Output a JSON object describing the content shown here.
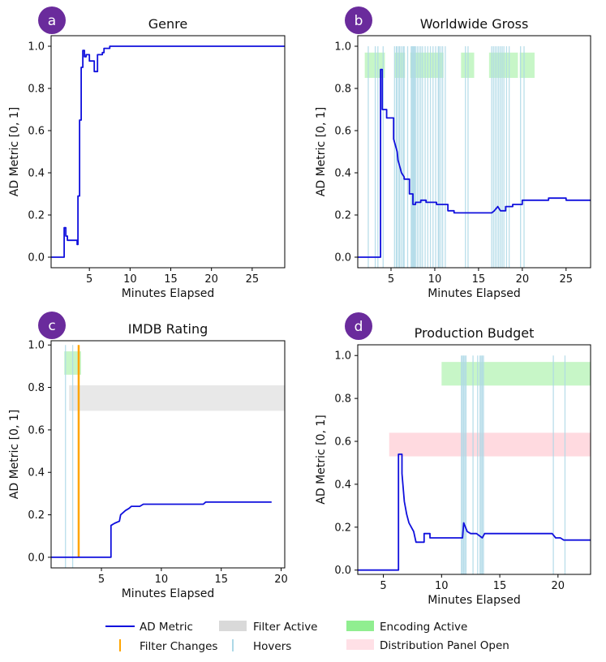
{
  "legend": {
    "ad_metric": "AD Metric",
    "filter_active": "Filter Active",
    "encoding_active": "Encoding Active",
    "filter_changes": "Filter Changes",
    "hovers": "Hovers",
    "distribution_panel_open": "Distribution Panel Open"
  },
  "colors": {
    "ad_metric": "#1010dd",
    "filter_active": "#bdbdbd",
    "encoding_active": "#90ee90",
    "filter_changes": "#ffa500",
    "hovers": "#add8e6",
    "distribution_panel_open": "#ffb6c1",
    "badge": "#6a2b9c"
  },
  "chart_data": [
    {
      "badge": "a",
      "type": "line",
      "title": "Genre",
      "xlabel": "Minutes Elapsed",
      "ylabel": "AD Metric [0, 1]",
      "xlim": [
        0.3,
        29
      ],
      "ylim": [
        -0.05,
        1.05
      ],
      "xticks": [
        5,
        10,
        15,
        20,
        25
      ],
      "yticks": [
        0.0,
        0.2,
        0.4,
        0.6,
        0.8,
        1.0
      ],
      "series": [
        {
          "name": "AD Metric",
          "x": [
            0.3,
            1.9,
            1.9,
            2.1,
            2.1,
            2.3,
            2.3,
            3.5,
            3.5,
            3.6,
            3.6,
            3.8,
            3.8,
            4.0,
            4.0,
            4.2,
            4.2,
            4.4,
            4.4,
            4.6,
            4.6,
            5.0,
            5.0,
            5.6,
            5.6,
            6.0,
            6.0,
            6.6,
            6.6,
            6.8,
            6.8,
            7.5,
            7.5,
            29
          ],
          "y": [
            0.0,
            0.0,
            0.14,
            0.14,
            0.1,
            0.1,
            0.08,
            0.08,
            0.06,
            0.06,
            0.29,
            0.29,
            0.65,
            0.65,
            0.9,
            0.9,
            0.98,
            0.98,
            0.95,
            0.95,
            0.96,
            0.96,
            0.93,
            0.93,
            0.88,
            0.88,
            0.96,
            0.96,
            0.97,
            0.97,
            0.99,
            0.99,
            1.0,
            1.0
          ]
        }
      ],
      "hovers": [],
      "filter_changes": [],
      "bands": []
    },
    {
      "badge": "b",
      "type": "line",
      "title": "Worldwide Gross",
      "xlabel": "Minutes Elapsed",
      "ylabel": "AD Metric [0, 1]",
      "xlim": [
        1.2,
        27.8
      ],
      "ylim": [
        -0.05,
        1.05
      ],
      "xticks": [
        5,
        10,
        15,
        20,
        25
      ],
      "yticks": [
        0.0,
        0.2,
        0.4,
        0.6,
        0.8,
        1.0
      ],
      "series": [
        {
          "name": "AD Metric",
          "x": [
            1.2,
            3.8,
            3.8,
            4.0,
            4.0,
            4.5,
            4.5,
            5.3,
            5.3,
            5.7,
            5.8,
            6.0,
            6.2,
            6.5,
            6.5,
            7.1,
            7.1,
            7.5,
            7.5,
            7.8,
            7.8,
            8.4,
            8.4,
            9.0,
            9.0,
            10.2,
            10.2,
            11.5,
            11.5,
            12.2,
            12.2,
            16.5,
            16.8,
            17.2,
            17.5,
            18.1,
            18.1,
            18.9,
            18.9,
            20.0,
            20.0,
            23.0,
            23.0,
            25.0,
            25.0,
            27.8
          ],
          "y": [
            0.0,
            0.0,
            0.89,
            0.89,
            0.7,
            0.7,
            0.66,
            0.66,
            0.56,
            0.5,
            0.46,
            0.43,
            0.4,
            0.38,
            0.37,
            0.37,
            0.3,
            0.3,
            0.25,
            0.25,
            0.26,
            0.26,
            0.27,
            0.27,
            0.26,
            0.26,
            0.25,
            0.25,
            0.22,
            0.22,
            0.21,
            0.21,
            0.22,
            0.24,
            0.22,
            0.22,
            0.24,
            0.24,
            0.25,
            0.25,
            0.27,
            0.27,
            0.28,
            0.28,
            0.27,
            0.27
          ]
        },
        {
          "name": "Hovers",
          "x": [
            2.4,
            3.2,
            3.5,
            4.1,
            5.4,
            5.6,
            5.7,
            5.9,
            6.0,
            6.2,
            6.4,
            6.5,
            6.9,
            7.3,
            7.4,
            7.5,
            7.6,
            7.7,
            7.8,
            8.0,
            8.2,
            8.4,
            8.6,
            8.9,
            9.2,
            9.5,
            9.8,
            10.1,
            10.4,
            10.5,
            10.7,
            10.9,
            11.2,
            13.5,
            13.8,
            16.5,
            16.7,
            16.9,
            17.1,
            17.3,
            17.5,
            17.7,
            17.9,
            18.2,
            18.5,
            19.8,
            20.2
          ]
        }
      ],
      "hovers": [
        2.4,
        3.2,
        3.5,
        4.1,
        5.4,
        5.6,
        5.7,
        5.9,
        6.0,
        6.2,
        6.4,
        6.5,
        6.9,
        7.3,
        7.4,
        7.5,
        7.6,
        7.7,
        7.8,
        8.0,
        8.2,
        8.4,
        8.6,
        8.9,
        9.2,
        9.5,
        9.8,
        10.1,
        10.4,
        10.5,
        10.7,
        10.9,
        11.2,
        13.5,
        13.8,
        16.5,
        16.7,
        16.9,
        17.1,
        17.3,
        17.5,
        17.7,
        17.9,
        18.2,
        18.5,
        19.8,
        20.2
      ],
      "filter_changes": [],
      "bands": [
        {
          "kind": "encoding_active",
          "x0": 2.0,
          "x1": 4.3,
          "y0": 0.85,
          "y1": 0.97
        },
        {
          "kind": "encoding_active",
          "x0": 5.4,
          "x1": 6.6,
          "y0": 0.85,
          "y1": 0.97
        },
        {
          "kind": "encoding_active",
          "x0": 7.2,
          "x1": 11.0,
          "y0": 0.85,
          "y1": 0.97
        },
        {
          "kind": "encoding_active",
          "x0": 13.0,
          "x1": 14.5,
          "y0": 0.85,
          "y1": 0.97
        },
        {
          "kind": "encoding_active",
          "x0": 16.2,
          "x1": 19.5,
          "y0": 0.85,
          "y1": 0.97
        },
        {
          "kind": "encoding_active",
          "x0": 19.7,
          "x1": 21.4,
          "y0": 0.85,
          "y1": 0.97
        }
      ]
    },
    {
      "badge": "c",
      "type": "line",
      "title": "IMDB Rating",
      "xlabel": "Minutes Elapsed",
      "ylabel": "AD Metric [0, 1]",
      "xlim": [
        0.8,
        20.3
      ],
      "ylim": [
        -0.05,
        1.02
      ],
      "xticks": [
        5,
        10,
        15,
        20
      ],
      "yticks": [
        0.0,
        0.2,
        0.4,
        0.6,
        0.8,
        1.0
      ],
      "series": [
        {
          "name": "AD Metric",
          "x": [
            0.8,
            5.8,
            5.8,
            6.1,
            6.5,
            6.6,
            7.0,
            7.3,
            7.5,
            8.2,
            8.5,
            9.0,
            9.8,
            13.5,
            13.7,
            17.0,
            17.3,
            19.2
          ],
          "y": [
            0.0,
            0.0,
            0.15,
            0.16,
            0.17,
            0.2,
            0.22,
            0.23,
            0.24,
            0.24,
            0.25,
            0.25,
            0.25,
            0.25,
            0.26,
            0.26,
            0.26,
            0.26
          ]
        }
      ],
      "hovers": [
        2.0,
        2.6
      ],
      "filter_changes": [
        3.1
      ],
      "bands": [
        {
          "kind": "encoding_active",
          "x0": 1.9,
          "x1": 3.3,
          "y0": 0.86,
          "y1": 0.97
        },
        {
          "kind": "filter_active",
          "x0": 2.3,
          "x1": 20.3,
          "y0": 0.69,
          "y1": 0.81
        }
      ]
    },
    {
      "badge": "d",
      "type": "line",
      "title": "Production Budget",
      "xlabel": "Minutes Elapsed",
      "ylabel": "AD Metric [0, 1]",
      "xlim": [
        2.8,
        22.8
      ],
      "ylim": [
        -0.02,
        1.05
      ],
      "xticks": [
        5,
        10,
        15,
        20
      ],
      "yticks": [
        0.0,
        0.2,
        0.4,
        0.6,
        0.8,
        1.0
      ],
      "series": [
        {
          "name": "AD Metric",
          "x": [
            2.8,
            6.3,
            6.3,
            6.6,
            6.6,
            6.8,
            7.0,
            7.2,
            7.4,
            7.6,
            7.8,
            8.5,
            8.5,
            9.0,
            9.0,
            11.8,
            11.9,
            12.2,
            12.5,
            13.0,
            13.5,
            13.7,
            14.0,
            19.5,
            19.8,
            20.2,
            20.5,
            22.8
          ],
          "y": [
            0.0,
            0.0,
            0.54,
            0.54,
            0.45,
            0.32,
            0.26,
            0.22,
            0.2,
            0.18,
            0.13,
            0.13,
            0.17,
            0.17,
            0.15,
            0.15,
            0.22,
            0.18,
            0.17,
            0.17,
            0.15,
            0.17,
            0.17,
            0.17,
            0.15,
            0.15,
            0.14,
            0.14
          ]
        }
      ],
      "hovers": [
        11.7,
        11.8,
        11.9,
        12.0,
        12.1,
        12.7,
        13.1,
        13.3,
        13.4,
        13.5,
        13.6,
        19.6,
        20.6
      ],
      "filter_changes": [],
      "bands": [
        {
          "kind": "encoding_active",
          "x0": 10.0,
          "x1": 22.8,
          "y0": 0.86,
          "y1": 0.97
        },
        {
          "kind": "distribution_panel_open",
          "x0": 5.5,
          "x1": 22.8,
          "y0": 0.53,
          "y1": 0.64
        }
      ]
    }
  ]
}
